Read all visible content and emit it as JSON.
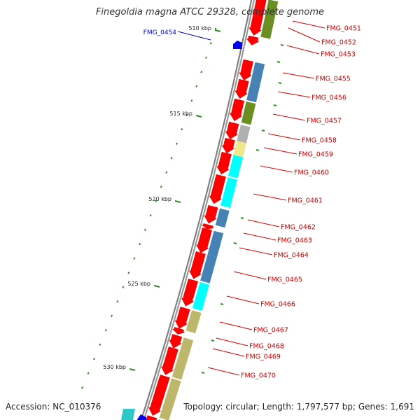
{
  "title": "Finegoldia magna ATCC 29328, complete genome",
  "footer": {
    "accession": "Accession: NC_010376",
    "topology": "Topology: circular; Length: 1,797,577 bp; Genes: 1,691"
  },
  "colors": {
    "forward_gene": "#ff0000",
    "reverse_gene_label": "#0000cc",
    "backbone": "#808080",
    "tick": "#2e8b22",
    "leader": "#dd0000",
    "cog_steelblue": "#4682b4",
    "cog_olive": "#6b8e23",
    "cog_gray": "#b0b0b0",
    "cog_khaki": "#f0e68c",
    "cog_cyan": "#00ffff",
    "cog_darkkhaki": "#bdb76b"
  },
  "scale_labels": [
    "510 kbp",
    "515 kbp",
    "520 kbp",
    "525 kbp",
    "530 kbp"
  ],
  "reverse_genes": [
    "FMG_0454"
  ],
  "forward_genes": [
    "FMG_0451",
    "FMG_0452",
    "FMG_0453",
    "FMG_0455",
    "FMG_0456",
    "FMG_0457",
    "FMG_0458",
    "FMG_0459",
    "FMG_0460",
    "FMG_0461",
    "FMG_0462",
    "FMG_0463",
    "FMG_0464",
    "FMG_0465",
    "FMG_0466",
    "FMG_0467",
    "FMG_0468",
    "FMG_0469",
    "FMG_0470"
  ]
}
